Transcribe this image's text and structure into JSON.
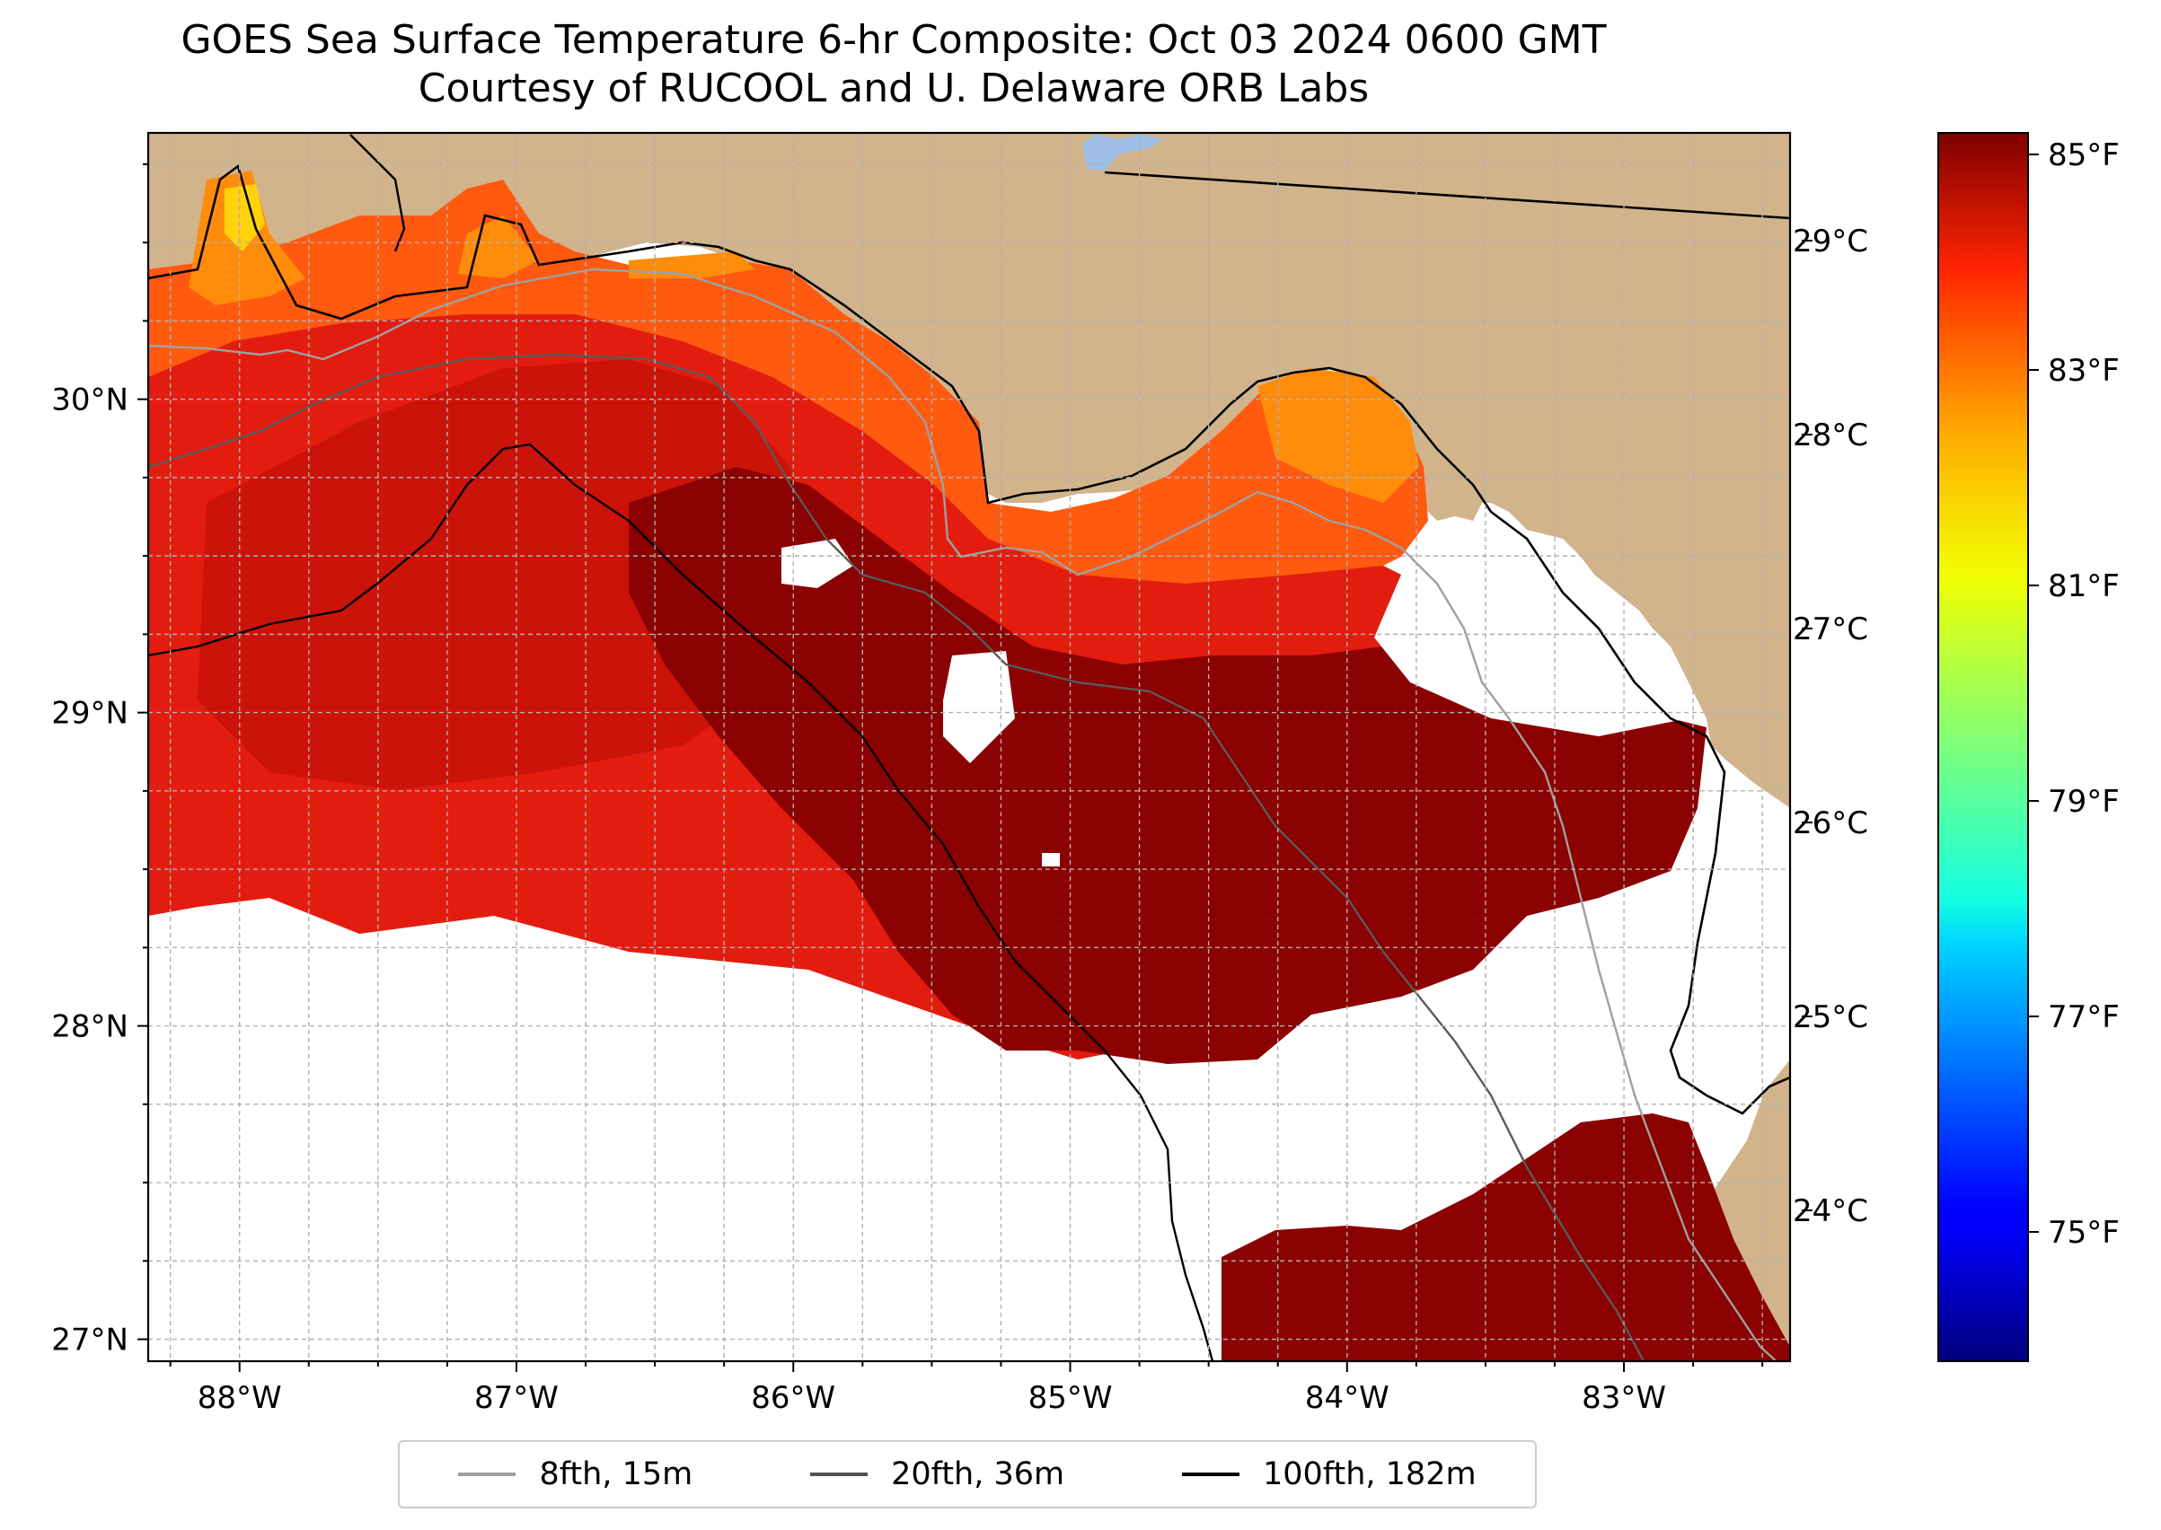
{
  "title": {
    "line1": "GOES Sea Surface Temperature 6-hr Composite: Oct 03 2024 0600 GMT",
    "line2": "Courtesy of RUCOOL and U. Delaware ORB Labs"
  },
  "map": {
    "lon_range": [
      -88.33,
      -82.4
    ],
    "lat_range": [
      26.93,
      30.85
    ],
    "lon_ticks": [
      {
        "value": -88,
        "label": "88°W"
      },
      {
        "value": -87,
        "label": "87°W"
      },
      {
        "value": -86,
        "label": "86°W"
      },
      {
        "value": -85,
        "label": "85°W"
      },
      {
        "value": -84,
        "label": "84°W"
      },
      {
        "value": -83,
        "label": "83°W"
      }
    ],
    "lat_ticks": [
      {
        "value": 27,
        "label": "27°N"
      },
      {
        "value": 28,
        "label": "28°N"
      },
      {
        "value": 29,
        "label": "29°N"
      },
      {
        "value": 30,
        "label": "30°N"
      }
    ],
    "colors": {
      "land": "#d2b48c",
      "no_data": "#ffffff",
      "lake": "#9fbfe6",
      "warmest": "#8b0000",
      "warm": "#c0100a",
      "mid": "#e8200f",
      "shelf": "#ff5014",
      "cooler": "#ff8c0a",
      "coolest_shown": "#ffd20a"
    }
  },
  "colorbar": {
    "colormap": "jet",
    "fahrenheit_range": [
      73.8,
      85.2
    ],
    "celsius_ticks": [
      {
        "value": 24,
        "label": "24°C"
      },
      {
        "value": 25,
        "label": "25°C"
      },
      {
        "value": 26,
        "label": "26°C"
      },
      {
        "value": 27,
        "label": "27°C"
      },
      {
        "value": 28,
        "label": "28°C"
      },
      {
        "value": 29,
        "label": "29°C"
      }
    ],
    "fahrenheit_ticks": [
      {
        "value": 75,
        "label": "75°F"
      },
      {
        "value": 77,
        "label": "77°F"
      },
      {
        "value": 79,
        "label": "79°F"
      },
      {
        "value": 81,
        "label": "81°F"
      },
      {
        "value": 83,
        "label": "83°F"
      },
      {
        "value": 85,
        "label": "85°F"
      }
    ]
  },
  "legend": {
    "items": [
      {
        "label": "8fth, 15m",
        "color": "#a0a0a0"
      },
      {
        "label": "20fth, 36m",
        "color": "#505050"
      },
      {
        "label": "100fth, 182m",
        "color": "#000000"
      }
    ]
  }
}
